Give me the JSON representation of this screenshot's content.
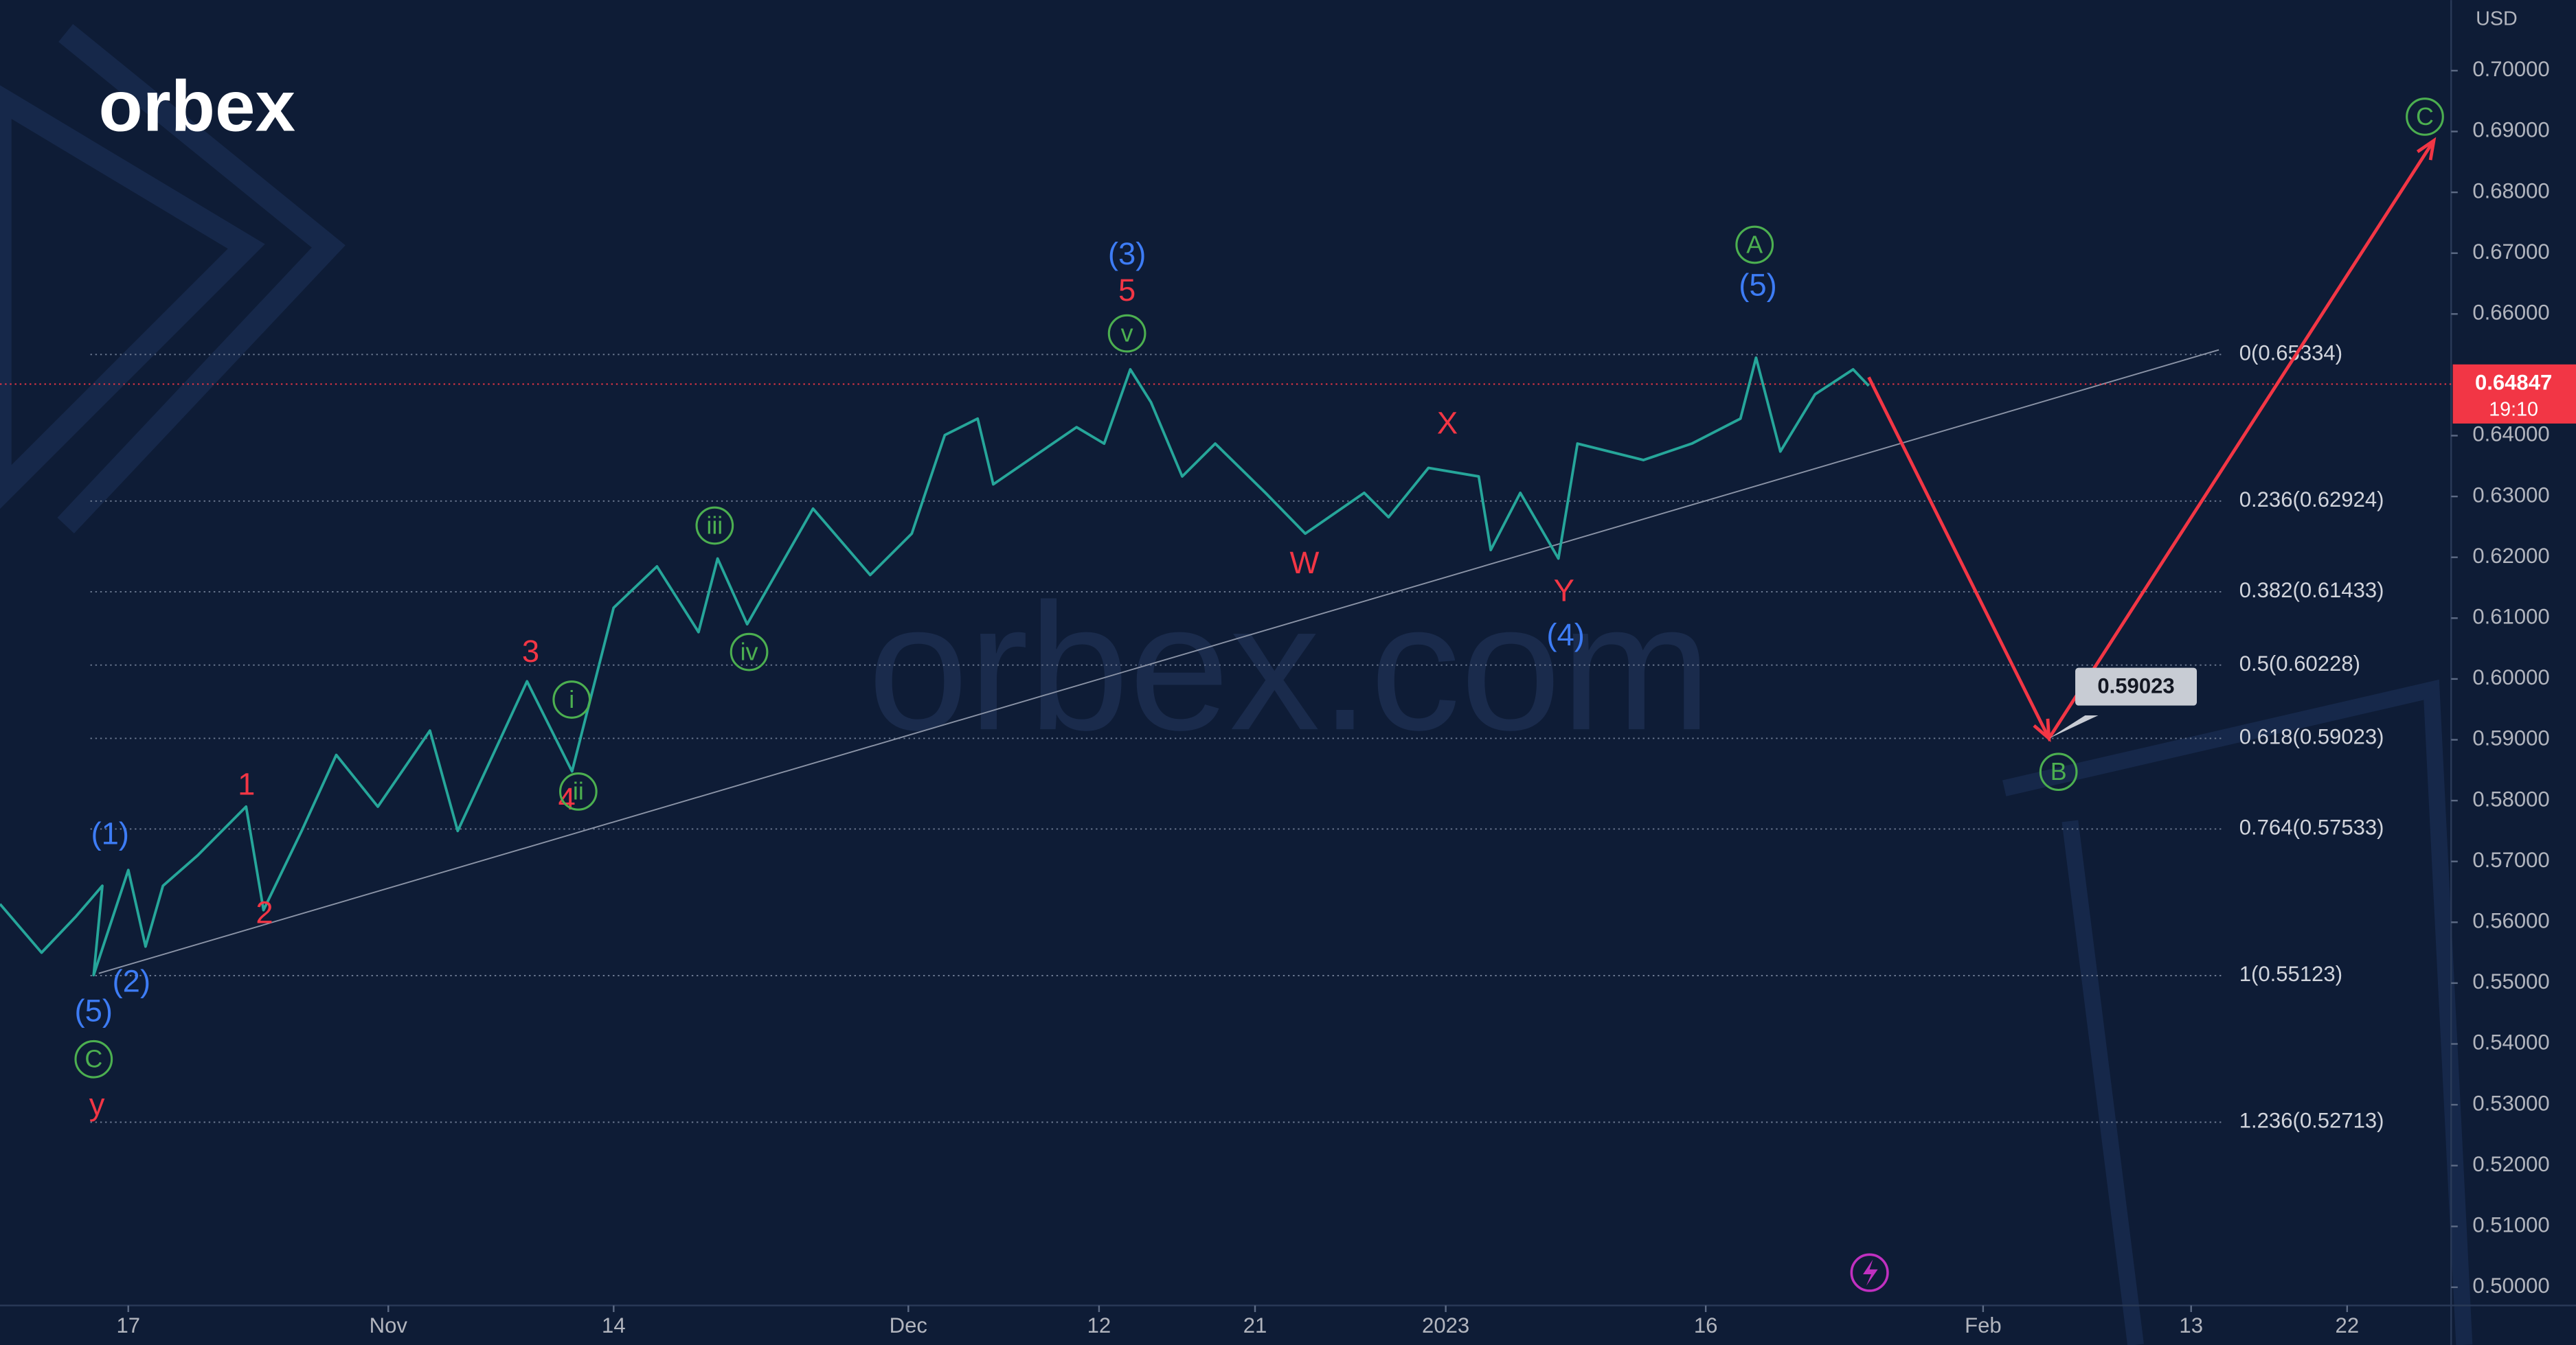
{
  "chart_data": {
    "type": "line",
    "logo": "orbex",
    "watermark": "orbex.com",
    "y_axis_label": "USD",
    "xlim": [
      -7.4,
      134
    ],
    "ylim": [
      0.497,
      0.7116
    ],
    "xticks": [
      {
        "value": 0,
        "label": "17"
      },
      {
        "value": 15,
        "label": "Nov"
      },
      {
        "value": 28,
        "label": "14"
      },
      {
        "value": 45,
        "label": "Dec"
      },
      {
        "value": 56,
        "label": "12"
      },
      {
        "value": 65,
        "label": "21"
      },
      {
        "value": 76,
        "label": "2023"
      },
      {
        "value": 91,
        "label": "16"
      },
      {
        "value": 107,
        "label": "Feb"
      },
      {
        "value": 119,
        "label": "13"
      },
      {
        "value": 128,
        "label": "22"
      }
    ],
    "yticks": [
      {
        "value": 0.5,
        "label": "0.50000"
      },
      {
        "value": 0.51,
        "label": "0.51000"
      },
      {
        "value": 0.52,
        "label": "0.52000"
      },
      {
        "value": 0.53,
        "label": "0.53000"
      },
      {
        "value": 0.54,
        "label": "0.54000"
      },
      {
        "value": 0.55,
        "label": "0.55000"
      },
      {
        "value": 0.56,
        "label": "0.56000"
      },
      {
        "value": 0.57,
        "label": "0.57000"
      },
      {
        "value": 0.58,
        "label": "0.58000"
      },
      {
        "value": 0.59,
        "label": "0.59000"
      },
      {
        "value": 0.6,
        "label": "0.60000"
      },
      {
        "value": 0.61,
        "label": "0.61000"
      },
      {
        "value": 0.62,
        "label": "0.62000"
      },
      {
        "value": 0.63,
        "label": "0.63000"
      },
      {
        "value": 0.64,
        "label": "0.64000"
      },
      {
        "value": 0.66,
        "label": "0.66000"
      },
      {
        "value": 0.67,
        "label": "0.67000"
      },
      {
        "value": 0.68,
        "label": "0.68000"
      },
      {
        "value": 0.69,
        "label": "0.69000"
      },
      {
        "value": 0.7,
        "label": "0.70000"
      }
    ],
    "series": [
      {
        "color": "#26a69a",
        "x": [
          -7.4,
          -5,
          -3,
          -1.5,
          -2,
          0,
          1,
          2,
          4,
          6.8,
          7.8,
          10,
          12,
          14.4,
          17.4,
          19,
          23,
          25.6,
          28,
          30.5,
          32.9,
          34,
          35.7,
          39.5,
          42.8,
          45.2,
          47.1,
          49,
          49.9,
          54.7,
          56.3,
          57.8,
          59,
          60.8,
          62.7,
          65.6,
          67.9,
          71.3,
          72.7,
          75,
          77.9,
          78.6,
          80.3,
          82.5,
          83.6,
          87.4,
          90.2,
          93,
          93.9,
          95.3,
          97.3,
          99.5,
          100.4
        ],
        "values": [
          0.563,
          0.555,
          0.561,
          0.566,
          0.5513,
          0.5686,
          0.556,
          0.566,
          0.571,
          0.579,
          0.562,
          0.575,
          0.5875,
          0.579,
          0.5915,
          0.575,
          0.5996,
          0.5848,
          0.6117,
          0.6185,
          0.6077,
          0.6198,
          0.609,
          0.628,
          0.6171,
          0.6239,
          0.6401,
          0.6428,
          0.632,
          0.6414,
          0.6387,
          0.6509,
          0.6455,
          0.6333,
          0.6387,
          0.6306,
          0.6239,
          0.6306,
          0.6266,
          0.6347,
          0.6333,
          0.6212,
          0.6306,
          0.6198,
          0.6387,
          0.636,
          0.6387,
          0.6428,
          0.6528,
          0.6374,
          0.6468,
          0.6509,
          0.6482
        ]
      }
    ],
    "fib_levels": [
      {
        "label": "0(0.65334)",
        "value": 0.65334
      },
      {
        "label": "0.236(0.62924)",
        "value": 0.62924
      },
      {
        "label": "0.382(0.61433)",
        "value": 0.61433
      },
      {
        "label": "0.5(0.60228)",
        "value": 0.60228
      },
      {
        "label": "0.618(0.59023)",
        "value": 0.59023
      },
      {
        "label": "0.764(0.57533)",
        "value": 0.57533
      },
      {
        "label": "1(0.55123)",
        "value": 0.55123
      },
      {
        "label": "1.236(0.52713)",
        "value": 0.52713
      }
    ],
    "current_price": {
      "value": 0.64847,
      "time": "19:10",
      "color": "#f23645"
    },
    "target": {
      "value": 0.59023
    },
    "trendline": {
      "x": [
        -1.7,
        120.6
      ],
      "values": [
        0.5516,
        0.6541
      ]
    },
    "projection": {
      "color": "#f23645",
      "x": [
        100.4,
        110.8,
        133
      ],
      "values": [
        0.6496,
        0.59023,
        0.6885
      ]
    },
    "annotations": [
      {
        "text": "(3)",
        "color": "#3d7cf5"
      },
      {
        "text": "5",
        "color": "#f23645"
      },
      {
        "text": "v",
        "color": "#4caf50",
        "circled": true
      },
      {
        "text": "iii",
        "color": "#4caf50",
        "circled": true
      },
      {
        "text": "iv",
        "color": "#4caf50",
        "circled": true
      },
      {
        "text": "i",
        "color": "#4caf50",
        "circled": true
      },
      {
        "text": "4",
        "color": "#f23645"
      },
      {
        "text": "ii",
        "color": "#4caf50",
        "circled": true
      },
      {
        "text": "3",
        "color": "#f23645"
      },
      {
        "text": "1",
        "color": "#f23645"
      },
      {
        "text": "2",
        "color": "#f23645"
      },
      {
        "text": "(1)",
        "color": "#3d7cf5"
      },
      {
        "text": "(2)",
        "color": "#3d7cf5"
      },
      {
        "text": "(5)",
        "color": "#3d7cf5"
      },
      {
        "text": "C",
        "color": "#4caf50",
        "circled": true
      },
      {
        "text": "y",
        "color": "#f23645"
      },
      {
        "text": "W",
        "color": "#f23645"
      },
      {
        "text": "X",
        "color": "#f23645"
      },
      {
        "text": "Y",
        "color": "#f23645"
      },
      {
        "text": "(4)",
        "color": "#3d7cf5"
      },
      {
        "text": "A",
        "color": "#4caf50",
        "circled": true
      },
      {
        "text": "(5)",
        "color": "#3d7cf5"
      },
      {
        "text": "B",
        "color": "#4caf50",
        "circled": true
      },
      {
        "text": "C",
        "color": "#4caf50",
        "circled": true
      }
    ]
  }
}
